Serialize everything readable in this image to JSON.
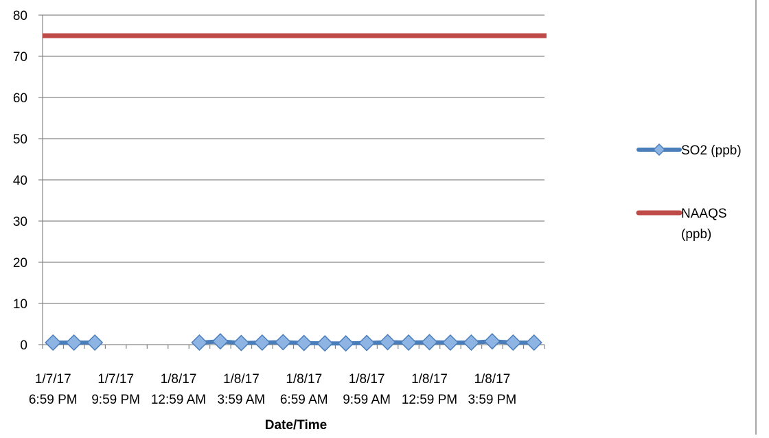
{
  "chart_data": {
    "type": "line",
    "title": "",
    "xlabel": "Date/Time",
    "ylabel": "",
    "ylim": [
      0,
      80
    ],
    "y_ticks": [
      0,
      10,
      20,
      30,
      40,
      50,
      60,
      70,
      80
    ],
    "grid": "horizontal",
    "legend_position": "right",
    "x_tick_labels": [
      [
        "1/7/17",
        "6:59 PM"
      ],
      [
        "1/7/17",
        "9:59 PM"
      ],
      [
        "1/8/17",
        "12:59 AM"
      ],
      [
        "1/8/17",
        "3:59 AM"
      ],
      [
        "1/8/17",
        "6:59 AM"
      ],
      [
        "1/8/17",
        "9:59 AM"
      ],
      [
        "1/8/17",
        "12:59 PM"
      ],
      [
        "1/8/17",
        "3:59 PM"
      ]
    ],
    "point_count": 24,
    "series": [
      {
        "name": "SO2 (ppb)",
        "color": "#4a7ebb",
        "marker": "diamond",
        "marker_color": "#8eb4e3",
        "values": [
          0.5,
          0.5,
          0.5,
          null,
          null,
          null,
          null,
          0.5,
          0.8,
          0.4,
          0.5,
          0.6,
          0.4,
          0.3,
          0.3,
          0.4,
          0.6,
          0.5,
          0.6,
          0.5,
          0.5,
          0.8,
          0.5,
          0.5
        ]
      },
      {
        "name": "NAAQS (ppb)",
        "color": "#be4b48",
        "marker": "none",
        "values": [
          75,
          75,
          75,
          75,
          75,
          75,
          75,
          75,
          75,
          75,
          75,
          75,
          75,
          75,
          75,
          75,
          75,
          75,
          75,
          75,
          75,
          75,
          75,
          75
        ]
      }
    ]
  }
}
